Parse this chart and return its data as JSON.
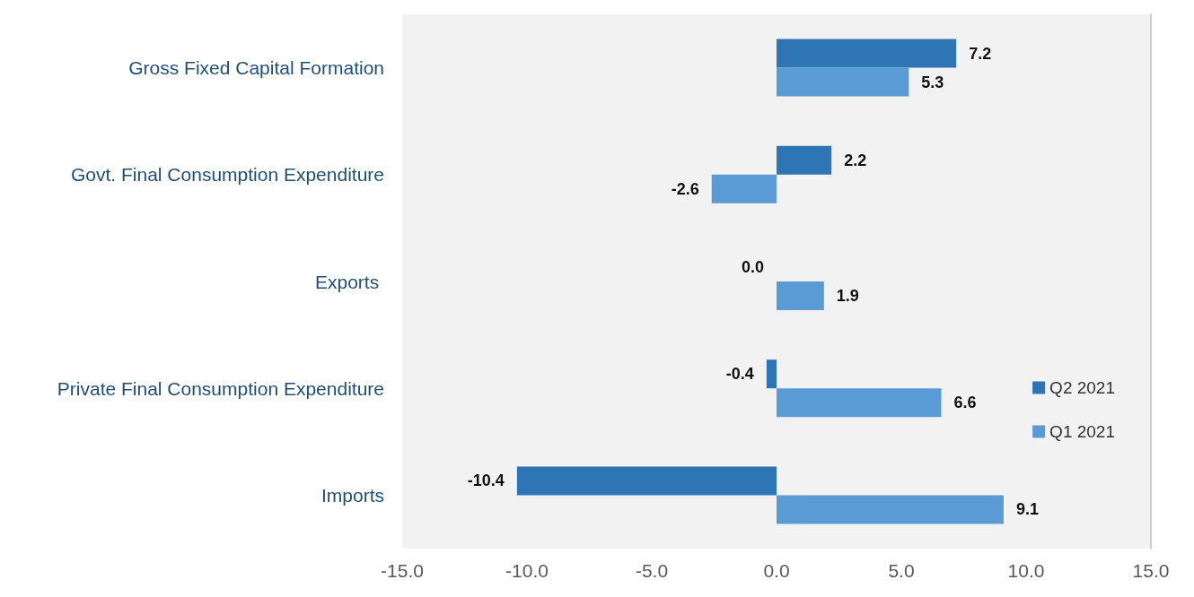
{
  "chart_data": {
    "type": "bar",
    "orientation": "horizontal",
    "categories": [
      "Gross Fixed Capital Formation",
      "Govt. Final Consumption Expenditure",
      "Exports ",
      "Private Final Consumption Expenditure",
      "Imports"
    ],
    "series": [
      {
        "name": "Q2 2021",
        "color": "#2e75b6",
        "values": [
          7.2,
          2.2,
          0.0,
          -0.4,
          -10.4
        ],
        "value_labels": [
          "7.2",
          "2.2",
          "0.0",
          "-0.4",
          "-10.4"
        ]
      },
      {
        "name": "Q1 2021",
        "color": "#5b9bd5",
        "values": [
          5.3,
          -2.6,
          1.9,
          6.6,
          9.1
        ],
        "value_labels": [
          "5.3",
          "-2.6",
          "1.9",
          "6.6",
          "9.1"
        ]
      }
    ],
    "xlim": [
      -15,
      15
    ],
    "xticks": [
      {
        "value": -15,
        "label": "-15.0"
      },
      {
        "value": -10,
        "label": "-10.0"
      },
      {
        "value": -5,
        "label": "-5.0"
      },
      {
        "value": 0,
        "label": "0.0"
      },
      {
        "value": 5,
        "label": "5.0"
      },
      {
        "value": 10,
        "label": "10.0"
      },
      {
        "value": 15,
        "label": "15.0"
      }
    ],
    "grid": false,
    "legend": "right"
  }
}
